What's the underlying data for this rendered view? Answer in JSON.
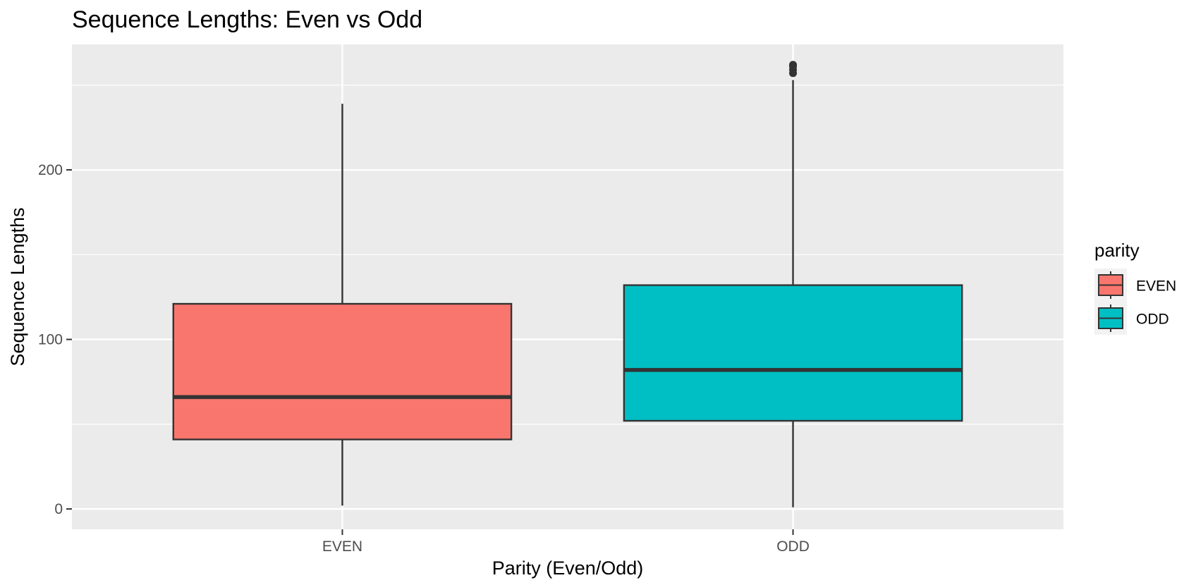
{
  "chart_data": {
    "type": "boxplot",
    "title": "Sequence Lengths: Even vs Odd",
    "xlabel": "Parity (Even/Odd)",
    "ylabel": "Sequence Lengths",
    "ylim": [
      -12,
      274
    ],
    "y_ticks": [
      0,
      100,
      200
    ],
    "y_minor_ticks": [
      50,
      150,
      250
    ],
    "grid": true,
    "legend": {
      "title": "parity",
      "position": "right",
      "entries": [
        "EVEN",
        "ODD"
      ]
    },
    "categories": [
      "EVEN",
      "ODD"
    ],
    "series": [
      {
        "name": "EVEN",
        "color": "#F8766D",
        "min": 2,
        "q1": 41,
        "median": 66,
        "q3": 121,
        "max": 239,
        "outliers": []
      },
      {
        "name": "ODD",
        "color": "#00BFC4",
        "min": 1,
        "q1": 52,
        "median": 82,
        "q3": 132,
        "max": 253,
        "outliers": [
          257,
          259,
          261,
          262
        ]
      }
    ]
  }
}
